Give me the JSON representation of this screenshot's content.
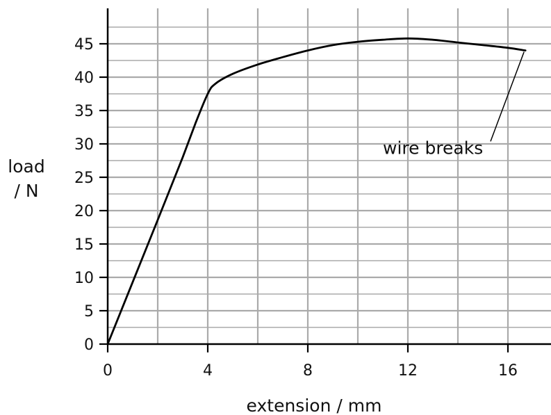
{
  "chart_data": {
    "type": "line",
    "xlabel": "extension / mm",
    "ylabel_lines": [
      "load",
      "/ N"
    ],
    "xlim": [
      0,
      17.7
    ],
    "ylim": [
      0,
      48
    ],
    "x_ticks": [
      0,
      4,
      8,
      12,
      16
    ],
    "y_ticks": [
      0,
      5,
      10,
      15,
      20,
      25,
      30,
      35,
      40,
      45
    ],
    "grid": true,
    "series": [
      {
        "x": [
          0,
          1,
          2,
          3,
          3.5,
          4.0,
          4.3,
          5.0,
          6.0,
          7.0,
          8.0,
          9.0,
          10.0,
          11.0,
          12.0,
          13.0,
          14.0,
          15.0,
          16.0,
          16.7
        ],
        "y": [
          0,
          9.3,
          18.6,
          28.0,
          33.0,
          37.5,
          39.0,
          40.5,
          41.9,
          43.0,
          44.0,
          44.8,
          45.3,
          45.6,
          45.8,
          45.6,
          45.2,
          44.8,
          44.4,
          44.0
        ]
      }
    ],
    "annotations": [
      {
        "text": "wire breaks",
        "x": 16.7,
        "y": 44.0,
        "label_x": 11.0,
        "label_y": 28.5
      }
    ]
  }
}
